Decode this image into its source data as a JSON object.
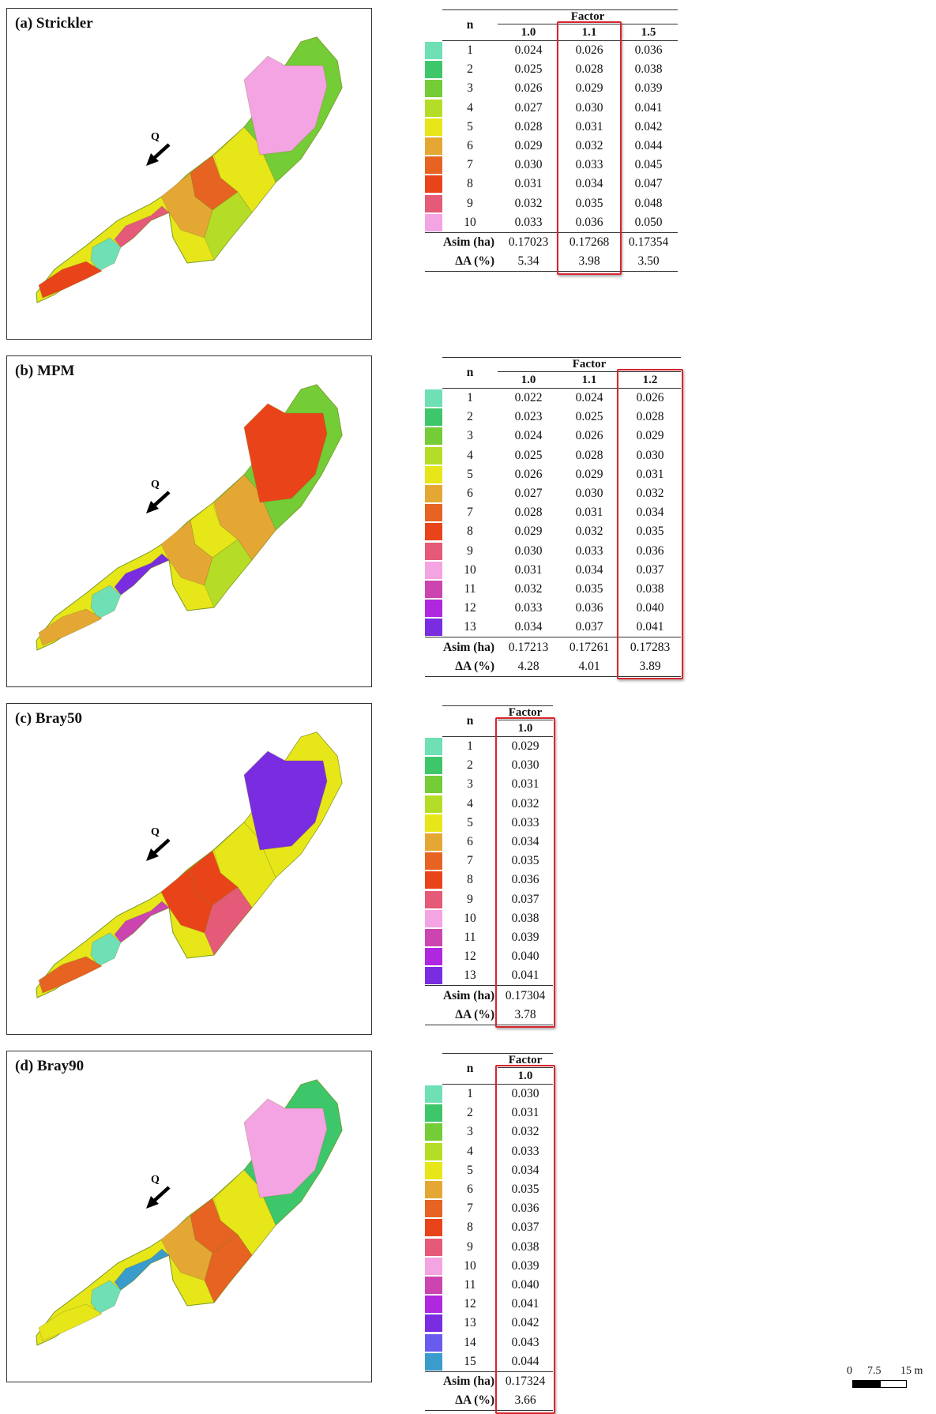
{
  "panels": [
    {
      "label": "(a) Strickler",
      "q_label": "Q",
      "table": {
        "n_header": "n",
        "factor_header": "Factor",
        "columns": [
          "1.0",
          "1.1",
          "1.5"
        ],
        "highlight_col": 1,
        "rows": [
          {
            "n": "1",
            "vals": [
              "0.024",
              "0.026",
              "0.036"
            ],
            "color": "#6fe0b5"
          },
          {
            "n": "2",
            "vals": [
              "0.025",
              "0.028",
              "0.038"
            ],
            "color": "#3ec76a"
          },
          {
            "n": "3",
            "vals": [
              "0.026",
              "0.029",
              "0.039"
            ],
            "color": "#74cc36"
          },
          {
            "n": "4",
            "vals": [
              "0.027",
              "0.030",
              "0.041"
            ],
            "color": "#b5dd27"
          },
          {
            "n": "5",
            "vals": [
              "0.028",
              "0.031",
              "0.042"
            ],
            "color": "#e7e619"
          },
          {
            "n": "6",
            "vals": [
              "0.029",
              "0.032",
              "0.044"
            ],
            "color": "#e5a733"
          },
          {
            "n": "7",
            "vals": [
              "0.030",
              "0.033",
              "0.045"
            ],
            "color": "#e66322"
          },
          {
            "n": "8",
            "vals": [
              "0.031",
              "0.034",
              "0.047"
            ],
            "color": "#e94419"
          },
          {
            "n": "9",
            "vals": [
              "0.032",
              "0.035",
              "0.048"
            ],
            "color": "#e45a78"
          },
          {
            "n": "10",
            "vals": [
              "0.033",
              "0.036",
              "0.050"
            ],
            "color": "#f4a3e3"
          }
        ],
        "asim_label": "Asim (ha)",
        "asim": [
          "0.17023",
          "0.17268",
          "0.17354"
        ],
        "da_label": "ΔA (%)",
        "da": [
          "5.34",
          "3.98",
          "3.50"
        ]
      }
    },
    {
      "label": "(b) MPM",
      "q_label": "Q",
      "table": {
        "n_header": "n",
        "factor_header": "Factor",
        "columns": [
          "1.0",
          "1.1",
          "1.2"
        ],
        "highlight_col": 2,
        "rows": [
          {
            "n": "1",
            "vals": [
              "0.022",
              "0.024",
              "0.026"
            ],
            "color": "#6fe0b5"
          },
          {
            "n": "2",
            "vals": [
              "0.023",
              "0.025",
              "0.028"
            ],
            "color": "#3ec76a"
          },
          {
            "n": "3",
            "vals": [
              "0.024",
              "0.026",
              "0.029"
            ],
            "color": "#74cc36"
          },
          {
            "n": "4",
            "vals": [
              "0.025",
              "0.028",
              "0.030"
            ],
            "color": "#b5dd27"
          },
          {
            "n": "5",
            "vals": [
              "0.026",
              "0.029",
              "0.031"
            ],
            "color": "#e7e619"
          },
          {
            "n": "6",
            "vals": [
              "0.027",
              "0.030",
              "0.032"
            ],
            "color": "#e5a733"
          },
          {
            "n": "7",
            "vals": [
              "0.028",
              "0.031",
              "0.034"
            ],
            "color": "#e66322"
          },
          {
            "n": "8",
            "vals": [
              "0.029",
              "0.032",
              "0.035"
            ],
            "color": "#e94419"
          },
          {
            "n": "9",
            "vals": [
              "0.030",
              "0.033",
              "0.036"
            ],
            "color": "#e45a78"
          },
          {
            "n": "10",
            "vals": [
              "0.031",
              "0.034",
              "0.037"
            ],
            "color": "#f4a3e3"
          },
          {
            "n": "11",
            "vals": [
              "0.032",
              "0.035",
              "0.038"
            ],
            "color": "#cc44b0"
          },
          {
            "n": "12",
            "vals": [
              "0.033",
              "0.036",
              "0.040"
            ],
            "color": "#b027e0"
          },
          {
            "n": "13",
            "vals": [
              "0.034",
              "0.037",
              "0.041"
            ],
            "color": "#7a2de0"
          }
        ],
        "asim_label": "Asim (ha)",
        "asim": [
          "0.17213",
          "0.17261",
          "0.17283"
        ],
        "da_label": "ΔA (%)",
        "da": [
          "4.28",
          "4.01",
          "3.89"
        ]
      }
    },
    {
      "label": "(c) Bray50",
      "q_label": "Q",
      "table": {
        "n_header": "n",
        "factor_header": "Factor",
        "columns": [
          "1.0"
        ],
        "highlight_col": 0,
        "rows": [
          {
            "n": "1",
            "vals": [
              "0.029"
            ],
            "color": "#6fe0b5"
          },
          {
            "n": "2",
            "vals": [
              "0.030"
            ],
            "color": "#3ec76a"
          },
          {
            "n": "3",
            "vals": [
              "0.031"
            ],
            "color": "#74cc36"
          },
          {
            "n": "4",
            "vals": [
              "0.032"
            ],
            "color": "#b5dd27"
          },
          {
            "n": "5",
            "vals": [
              "0.033"
            ],
            "color": "#e7e619"
          },
          {
            "n": "6",
            "vals": [
              "0.034"
            ],
            "color": "#e5a733"
          },
          {
            "n": "7",
            "vals": [
              "0.035"
            ],
            "color": "#e66322"
          },
          {
            "n": "8",
            "vals": [
              "0.036"
            ],
            "color": "#e94419"
          },
          {
            "n": "9",
            "vals": [
              "0.037"
            ],
            "color": "#e45a78"
          },
          {
            "n": "10",
            "vals": [
              "0.038"
            ],
            "color": "#f4a3e3"
          },
          {
            "n": "11",
            "vals": [
              "0.039"
            ],
            "color": "#cc44b0"
          },
          {
            "n": "12",
            "vals": [
              "0.040"
            ],
            "color": "#b027e0"
          },
          {
            "n": "13",
            "vals": [
              "0.041"
            ],
            "color": "#7a2de0"
          }
        ],
        "asim_label": "Asim (ha)",
        "asim": [
          "0.17304"
        ],
        "da_label": "ΔA (%)",
        "da": [
          "3.78"
        ]
      }
    },
    {
      "label": "(d) Bray90",
      "q_label": "Q",
      "table": {
        "n_header": "n",
        "factor_header": "Factor",
        "columns": [
          "1.0"
        ],
        "highlight_col": 0,
        "rows": [
          {
            "n": "1",
            "vals": [
              "0.030"
            ],
            "color": "#6fe0b5"
          },
          {
            "n": "2",
            "vals": [
              "0.031"
            ],
            "color": "#3ec76a"
          },
          {
            "n": "3",
            "vals": [
              "0.032"
            ],
            "color": "#74cc36"
          },
          {
            "n": "4",
            "vals": [
              "0.033"
            ],
            "color": "#b5dd27"
          },
          {
            "n": "5",
            "vals": [
              "0.034"
            ],
            "color": "#e7e619"
          },
          {
            "n": "6",
            "vals": [
              "0.035"
            ],
            "color": "#e5a733"
          },
          {
            "n": "7",
            "vals": [
              "0.036"
            ],
            "color": "#e66322"
          },
          {
            "n": "8",
            "vals": [
              "0.037"
            ],
            "color": "#e94419"
          },
          {
            "n": "9",
            "vals": [
              "0.038"
            ],
            "color": "#e45a78"
          },
          {
            "n": "10",
            "vals": [
              "0.039"
            ],
            "color": "#f4a3e3"
          },
          {
            "n": "11",
            "vals": [
              "0.040"
            ],
            "color": "#cc44b0"
          },
          {
            "n": "12",
            "vals": [
              "0.041"
            ],
            "color": "#b027e0"
          },
          {
            "n": "13",
            "vals": [
              "0.042"
            ],
            "color": "#7a2de0"
          },
          {
            "n": "14",
            "vals": [
              "0.043"
            ],
            "color": "#6a5bef"
          },
          {
            "n": "15",
            "vals": [
              "0.044"
            ],
            "color": "#3a9ccc"
          }
        ],
        "asim_label": "Asim (ha)",
        "asim": [
          "0.17324"
        ],
        "da_label": "ΔA (%)",
        "da": [
          "3.66"
        ]
      }
    }
  ],
  "map_zone_colors": [
    [
      "#74cc36",
      "#e7e619",
      "#f4a3e3",
      "#e66322",
      "#e5a733",
      "#b5dd27",
      "#e45a78",
      "#6fe0b5",
      "#e94419"
    ],
    [
      "#74cc36",
      "#e5a733",
      "#e94419",
      "#e7e619",
      "#e5a733",
      "#b5dd27",
      "#7a2de0",
      "#6fe0b5",
      "#e5a733"
    ],
    [
      "#e7e619",
      "#e7e619",
      "#7a2de0",
      "#e94419",
      "#e94419",
      "#e45a78",
      "#cc44b0",
      "#6fe0b5",
      "#e66322"
    ],
    [
      "#3ec76a",
      "#e7e619",
      "#f4a3e3",
      "#e66322",
      "#e5a733",
      "#e66322",
      "#3a9ccc",
      "#6fe0b5",
      "#e7e619"
    ]
  ],
  "scale_bar": {
    "labels": [
      "0",
      "7.5",
      "15 m"
    ]
  }
}
